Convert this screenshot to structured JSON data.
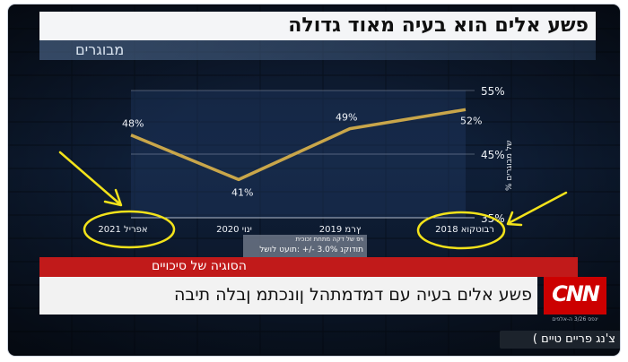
{
  "headline": "פשע אלים הוא בעיה מאוד גדולה",
  "pollster": "מבוגרים",
  "y_axis_label": "% של מבוגרים",
  "margin_note": {
    "line1": "ויפ של דקה מתחת זכוכית",
    "line2": "תודוקנ 3.0% -/+ :תועט לושל"
  },
  "lower_third": {
    "topic": "הסוגיה של סיכויים",
    "caption": "פשע אלים בעיה עם דמדמתהל ןונכתמ ןבלה תיבה"
  },
  "network": {
    "logo": "CNN",
    "sub": "ינפס 3/26 ה-אלפים"
  },
  "corner_tag": "צ'נג פריים טיים )",
  "colors": {
    "line": "#c9a64a",
    "highlight": "#f2e21a",
    "red_banner": "#c11a1a",
    "cnn_red": "#cc0000"
  },
  "chart_data": {
    "type": "line",
    "categories": [
      "אפריל 2021",
      "ינוי 2020",
      "ץרמ 2019",
      "רבוטקוא 2018"
    ],
    "values": [
      48,
      41,
      49,
      52
    ],
    "labels": [
      "48%",
      "41%",
      "49%",
      "52%"
    ],
    "y_ticks": [
      "55%",
      "45%",
      "35%"
    ],
    "ylim": [
      35,
      55
    ],
    "grid": true
  }
}
